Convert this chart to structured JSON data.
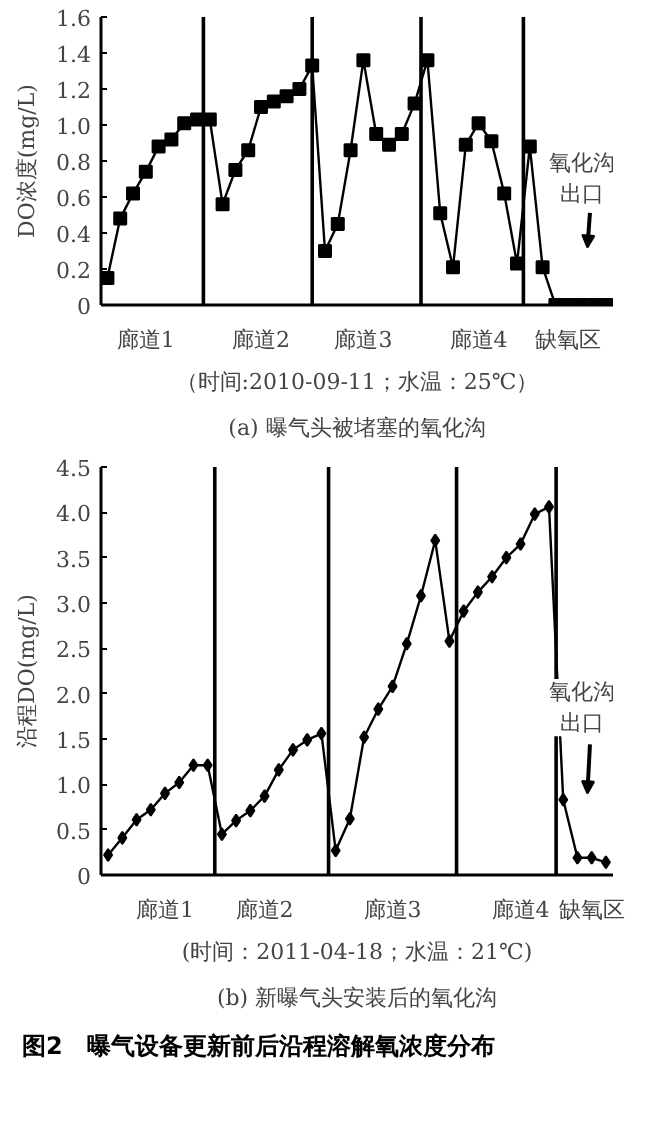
{
  "chart_data": [
    {
      "type": "line",
      "title": "(a) 曝气头被堵塞的氧化沟",
      "xlabel": "（时间:2010-09-11；水温：25℃）",
      "ylabel": "DO浓度(mg/L)",
      "marker": "square",
      "line_style": "solid",
      "grid": false,
      "categories": [
        null,
        null,
        null,
        "廊道1",
        null,
        null,
        null,
        null,
        null,
        null,
        null,
        null,
        "廊道2",
        null,
        null,
        null,
        null,
        null,
        null,
        null,
        "廊道3",
        null,
        null,
        null,
        null,
        null,
        null,
        null,
        null,
        "廊道4",
        null,
        null,
        null,
        null,
        null,
        null,
        "缺氧区",
        null,
        null,
        null
      ],
      "series": [
        {
          "color": "#000000",
          "values": [
            0.15,
            0.48,
            0.62,
            0.74,
            0.88,
            0.92,
            1.01,
            1.03,
            1.03,
            0.56,
            0.75,
            0.86,
            1.1,
            1.13,
            1.16,
            1.2,
            1.33,
            0.3,
            0.45,
            0.86,
            1.36,
            0.95,
            0.89,
            0.95,
            1.12,
            1.36,
            0.51,
            0.21,
            0.89,
            1.01,
            0.91,
            0.62,
            0.23,
            0.88,
            0.21,
            0,
            0,
            0,
            0,
            0
          ]
        }
      ],
      "ylim": [
        0,
        1.6
      ],
      "yticks": [
        0,
        0.2,
        0.4,
        0.6,
        0.8,
        {
          "value": 1,
          "label": "1.0"
        },
        1.2,
        1.4,
        1.6
      ],
      "annotations": [
        "氧化沟出口"
      ]
    },
    {
      "type": "line",
      "title": "(b) 新曝气头安装后的氧化沟",
      "xlabel": "(时间：2011-04-18；水温：21℃)",
      "ylabel": "沿程DO(mg/L)",
      "marker": "diamond",
      "line_style": "solid",
      "grid": false,
      "categories": [
        null,
        null,
        null,
        null,
        "廊道1",
        null,
        null,
        null,
        null,
        null,
        null,
        "廊道2",
        null,
        null,
        null,
        null,
        null,
        null,
        null,
        null,
        "廊道3",
        null,
        null,
        null,
        null,
        null,
        null,
        null,
        null,
        "廊道4",
        null,
        null,
        null,
        null,
        "缺氧区",
        null
      ],
      "series": [
        {
          "color": "#000000",
          "values": [
            0.22,
            0.41,
            0.61,
            0.72,
            0.9,
            1.02,
            1.21,
            1.21,
            0.45,
            0.6,
            0.71,
            0.87,
            1.16,
            1.38,
            1.49,
            1.56,
            0.27,
            0.62,
            1.52,
            1.83,
            2.08,
            2.55,
            3.08,
            3.69,
            2.58,
            2.91,
            3.12,
            3.29,
            3.5,
            3.65,
            3.98,
            4.06,
            0.83,
            0.19,
            0.19,
            0.14
          ]
        }
      ],
      "ylim": [
        0,
        4.5
      ],
      "yticks": [
        0,
        0.5,
        {
          "value": 1,
          "label": "1.0"
        },
        1.5,
        {
          "value": 2,
          "label": "2.0"
        },
        2.5,
        {
          "value": 3,
          "label": "3.0"
        },
        3.5,
        {
          "value": 4,
          "label": "4.0"
        },
        4.5
      ],
      "annotations": [
        "氧化沟出口",
        "图2　曝气设备更新前后沿程溶解氧浓度分布"
      ]
    }
  ]
}
